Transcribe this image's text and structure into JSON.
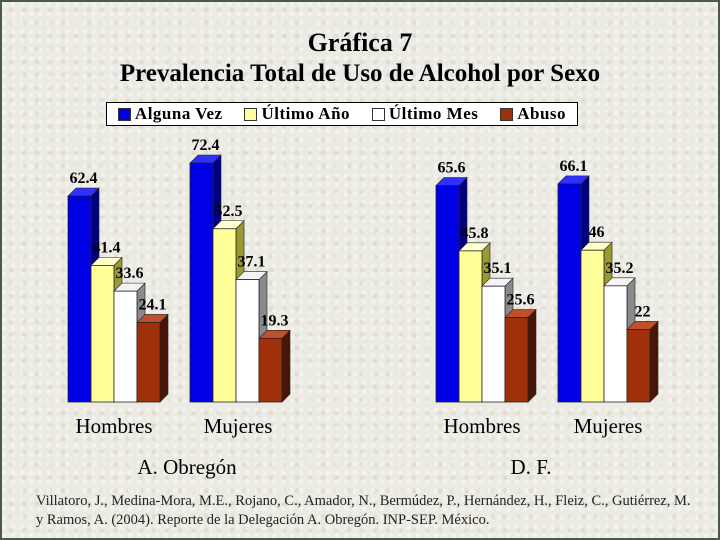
{
  "title_line1": "Gráfica 7",
  "title_line2": "Prevalencia Total de Uso de Alcohol por Sexo",
  "legend": [
    {
      "label": "Alguna Vez",
      "color": "#0000e6"
    },
    {
      "label": "Último Año",
      "color": "#ffff99"
    },
    {
      "label": "Último Mes",
      "color": "#ffffff"
    },
    {
      "label": "Abuso",
      "color": "#a0300a"
    }
  ],
  "panels": [
    {
      "name": "A. Obregón",
      "categories": [
        "Hombres",
        "Mujeres"
      ]
    },
    {
      "name": "D. F.",
      "categories": [
        "Hombres",
        "Mujeres"
      ]
    }
  ],
  "citation": "Villatoro, J., Medina-Mora, M.E., Rojano, C., Amador, N., Bermúdez, P., Hernández, H., Fleiz, C., Gutiérrez, M. y Ramos, A. (2004). Reporte de la Delegación A. Obregón. INP-SEP. México.",
  "chart_data": [
    {
      "type": "bar",
      "panel": "A. Obregón",
      "categories": [
        "Hombres",
        "Mujeres"
      ],
      "series": [
        {
          "name": "Alguna Vez",
          "values": [
            62.4,
            72.4
          ]
        },
        {
          "name": "Último Año",
          "values": [
            41.4,
            52.5
          ]
        },
        {
          "name": "Último Mes",
          "values": [
            33.6,
            37.1
          ]
        },
        {
          "name": "Abuso",
          "values": [
            24.1,
            19.3
          ]
        }
      ],
      "data_labels": true
    },
    {
      "type": "bar",
      "panel": "D. F.",
      "categories": [
        "Hombres",
        "Mujeres"
      ],
      "series": [
        {
          "name": "Alguna Vez",
          "values": [
            65.6,
            66.1
          ]
        },
        {
          "name": "Último Año",
          "values": [
            45.8,
            46
          ]
        },
        {
          "name": "Último Mes",
          "values": [
            35.1,
            35.2
          ]
        },
        {
          "name": "Abuso",
          "values": [
            25.6,
            22
          ]
        }
      ],
      "data_labels": true
    }
  ]
}
